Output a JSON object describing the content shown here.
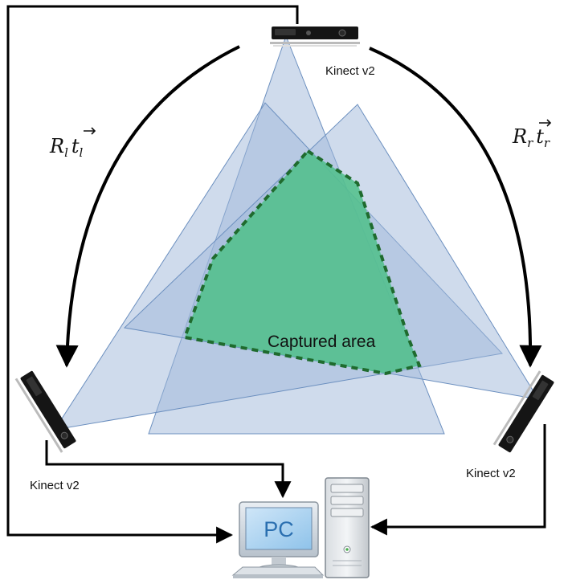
{
  "labels": {
    "kinect_top": "Kinect v2",
    "kinect_left": "Kinect v2",
    "kinect_right": "Kinect v2",
    "captured_area": "Captured area",
    "pc": "PC"
  },
  "transforms": {
    "left": {
      "R": "R",
      "R_sub": "l",
      "t": "t",
      "t_sub": "l"
    },
    "right": {
      "R": "R",
      "R_sub": "r",
      "t": "t",
      "t_sub": "r"
    }
  },
  "colors": {
    "fov_fill": "#9fb8d9",
    "fov_stroke": "#6b8fbf",
    "captured_fill": "#4fc08a",
    "captured_stroke": "#1f6b2e",
    "arrow": "#000000"
  }
}
